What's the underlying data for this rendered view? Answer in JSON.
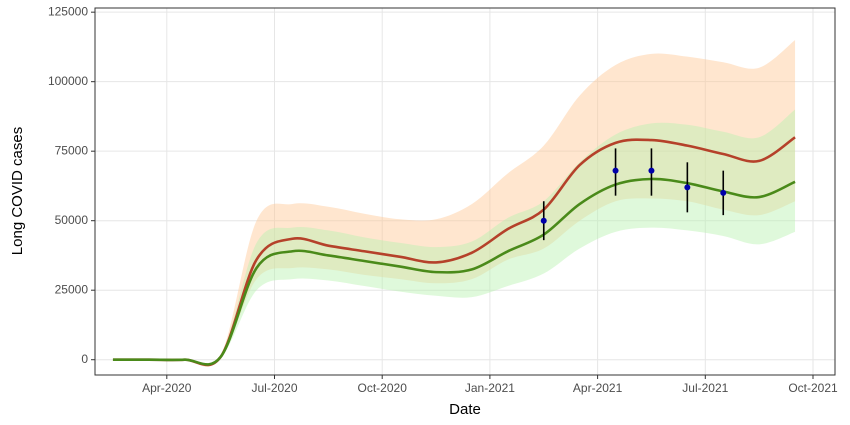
{
  "chart_data": {
    "type": "line",
    "xlabel": "Date",
    "ylabel": "Long COVID cases",
    "grid": true,
    "xlim": [
      "2020-02",
      "2021-10"
    ],
    "ylim": [
      -5500,
      126500
    ],
    "xticks": [
      {
        "value": "2020-04",
        "label": "Apr-2020"
      },
      {
        "value": "2020-07",
        "label": "Jul-2020"
      },
      {
        "value": "2020-10",
        "label": "Oct-2020"
      },
      {
        "value": "2021-01",
        "label": "Jan-2021"
      },
      {
        "value": "2021-04",
        "label": "Apr-2021"
      },
      {
        "value": "2021-07",
        "label": "Jul-2021"
      },
      {
        "value": "2021-10",
        "label": "Oct-2021"
      }
    ],
    "yticks": [
      0,
      25000,
      50000,
      75000,
      100000,
      125000
    ],
    "x": [
      "2020-02",
      "2020-03",
      "2020-04",
      "2020-05",
      "2020-06",
      "2020-07",
      "2020-08",
      "2020-09",
      "2020-10",
      "2020-11",
      "2020-12",
      "2021-01",
      "2021-02",
      "2021-03",
      "2021-04",
      "2021-05",
      "2021-06",
      "2021-07",
      "2021-08",
      "2021-09"
    ],
    "series": [
      {
        "color": "#b5412a",
        "band_color": "#ffc894",
        "values": [
          0,
          0,
          0,
          1000,
          36000,
          43500,
          41000,
          39000,
          37000,
          35000,
          38500,
          47000,
          54000,
          70000,
          78000,
          79000,
          77000,
          74000,
          71500,
          80000
        ],
        "upper": [
          0,
          0,
          0,
          1500,
          50000,
          56000,
          55000,
          52500,
          50500,
          50500,
          56000,
          67000,
          77000,
          95000,
          106000,
          110000,
          109000,
          107000,
          105000,
          115000
        ],
        "lower": [
          0,
          0,
          0,
          800,
          29000,
          33000,
          32500,
          30500,
          29000,
          27500,
          29000,
          36000,
          40000,
          50000,
          57000,
          58000,
          57000,
          54000,
          52000,
          57000
        ]
      },
      {
        "color": "#4a8a1a",
        "band_color": "#b8f2b0",
        "values": [
          0,
          0,
          0,
          1000,
          33000,
          39000,
          37500,
          35500,
          33500,
          31500,
          32500,
          39000,
          45000,
          56000,
          63000,
          65000,
          63500,
          60500,
          58500,
          64000
        ],
        "upper": [
          0,
          0,
          0,
          1200,
          42000,
          47500,
          46500,
          44000,
          42000,
          40500,
          42500,
          51000,
          57000,
          71000,
          81000,
          85000,
          84500,
          82000,
          80000,
          90000
        ],
        "lower": [
          0,
          0,
          0,
          700,
          25000,
          29000,
          28500,
          26500,
          24500,
          23000,
          22500,
          26500,
          31000,
          40000,
          46000,
          47500,
          46500,
          44500,
          41500,
          46000
        ]
      }
    ],
    "points": {
      "color": "#0000aa",
      "x": [
        "2021-02",
        "2021-04",
        "2021-05",
        "2021-06",
        "2021-07"
      ],
      "values": [
        50000,
        68000,
        68000,
        62000,
        60000
      ],
      "upper": [
        57000,
        76000,
        76000,
        71000,
        68000
      ],
      "lower": [
        43000,
        59000,
        59000,
        53000,
        52000
      ]
    }
  }
}
